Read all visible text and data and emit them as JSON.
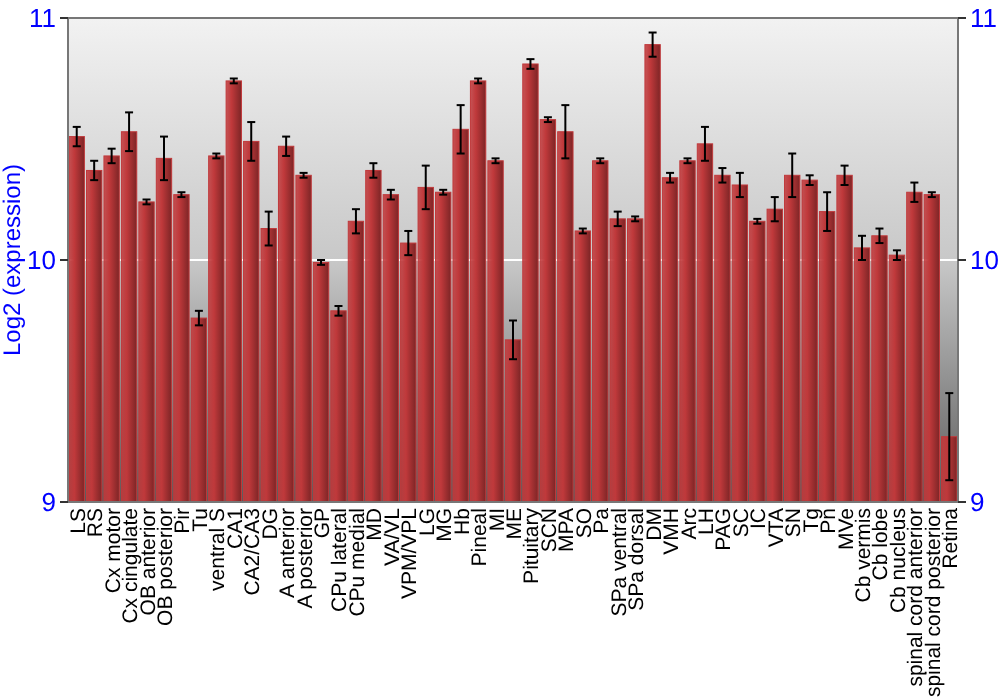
{
  "chart_data": {
    "type": "bar",
    "ylabel": "Log2 (expression)",
    "categories": [
      "LS",
      "RS",
      "Cx motor",
      "Cx cingulate",
      "OB anterior",
      "OB posterior",
      "Pir",
      "Tu",
      "ventral S",
      "CA1",
      "CA2/CA3",
      "DG",
      "A anterior",
      "A posterior",
      "GP",
      "CPu lateral",
      "CPu medial",
      "MD",
      "VA/VL",
      "VPM/VPL",
      "LG",
      "MG",
      "Hb",
      "Pineal",
      "MI",
      "ME",
      "Pituitary",
      "SCN",
      "MPA",
      "SO",
      "Pa",
      "SPa ventral",
      "SPa dorsal",
      "DM",
      "VMH",
      "Arc",
      "LH",
      "PAG",
      "SC",
      "IC",
      "VTA",
      "SN",
      "Tg",
      "Pn",
      "MVe",
      "Cb vermis",
      "Cb lobe",
      "Cb nucleus",
      "spinal cord anterior",
      "spinal cord posterior",
      "Retina"
    ],
    "values": [
      10.51,
      10.37,
      10.43,
      10.53,
      10.24,
      10.42,
      10.27,
      9.76,
      10.43,
      10.74,
      10.49,
      10.13,
      10.47,
      10.35,
      9.99,
      9.79,
      10.16,
      10.37,
      10.27,
      10.07,
      10.3,
      10.28,
      10.54,
      10.74,
      10.41,
      9.67,
      10.81,
      10.58,
      10.53,
      10.12,
      10.41,
      10.17,
      10.17,
      10.89,
      10.34,
      10.41,
      10.48,
      10.35,
      10.31,
      10.16,
      10.21,
      10.35,
      10.33,
      10.2,
      10.35,
      10.05,
      10.1,
      10.02,
      10.28,
      10.27,
      9.27
    ],
    "errors": [
      0.04,
      0.04,
      0.03,
      0.08,
      0.01,
      0.09,
      0.01,
      0.03,
      0.01,
      0.01,
      0.08,
      0.07,
      0.04,
      0.01,
      0.01,
      0.02,
      0.05,
      0.03,
      0.02,
      0.05,
      0.09,
      0.01,
      0.1,
      0.01,
      0.01,
      0.08,
      0.02,
      0.01,
      0.11,
      0.01,
      0.01,
      0.03,
      0.01,
      0.05,
      0.02,
      0.01,
      0.07,
      0.03,
      0.05,
      0.01,
      0.05,
      0.09,
      0.02,
      0.08,
      0.04,
      0.05,
      0.03,
      0.02,
      0.04,
      0.01,
      0.18
    ],
    "color": "#c0393b",
    "ylim": [
      9,
      11
    ],
    "yticks": [
      9,
      10,
      11
    ],
    "y2lim": [
      9,
      11
    ],
    "y2ticks": [
      9,
      10,
      11
    ],
    "grid": "y"
  }
}
